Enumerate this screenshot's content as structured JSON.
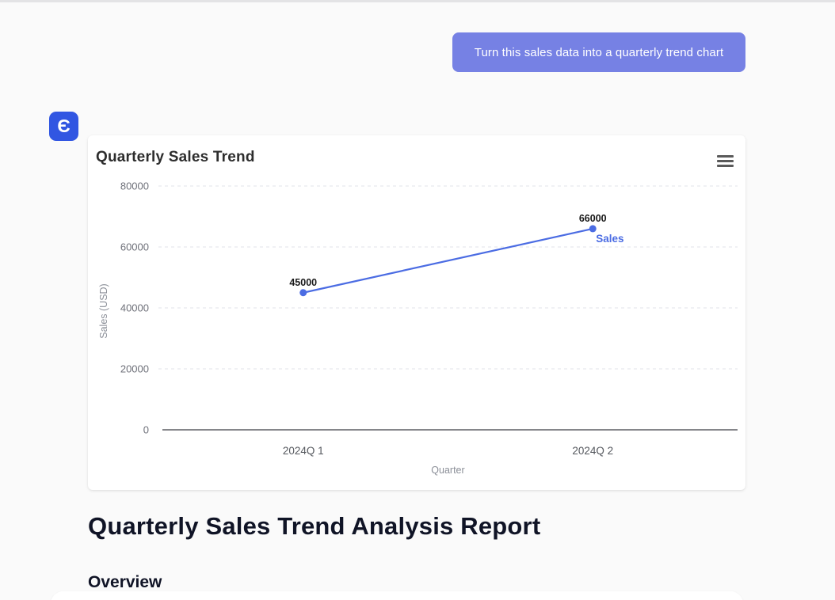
{
  "chat": {
    "user_message": "Turn this sales data into a quarterly trend chart",
    "bubble_color": "#7681e4",
    "assistant_avatar_glyph": "Є",
    "avatar_color": "#3156e2"
  },
  "chart_card": {
    "title": "Quarterly Sales Trend",
    "menu_icon": "hamburger-menu-icon"
  },
  "chart_data": {
    "type": "line",
    "title": "Quarterly Sales Trend",
    "categories": [
      "2024Q 1",
      "2024Q 2"
    ],
    "series": [
      {
        "name": "Sales",
        "values": [
          45000,
          66000
        ],
        "color": "#4b6ce3"
      }
    ],
    "xlabel": "Quarter",
    "ylabel": "Sales (USD)",
    "ylim": [
      0,
      80000
    ],
    "yticks": [
      0,
      20000,
      40000,
      60000,
      80000
    ],
    "grid": "horizontal-dashed",
    "data_labels": true,
    "series_end_label": "Sales",
    "legend_position": "end-of-line"
  },
  "report": {
    "heading": "Quarterly Sales Trend Analysis Report",
    "section_heading": "Overview"
  }
}
